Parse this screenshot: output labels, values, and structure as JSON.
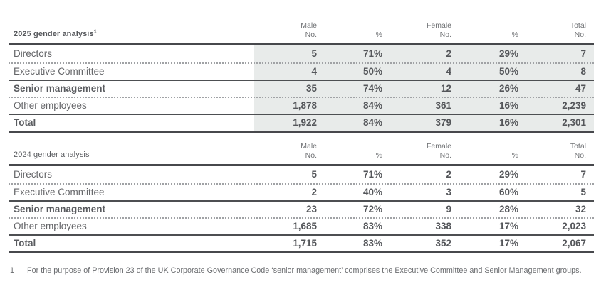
{
  "tables": [
    {
      "id": "table-2025",
      "title": "2025 gender analysis",
      "title_superscript": "1",
      "title_bold": true,
      "shaded": true,
      "columns": [
        {
          "line1": "Male",
          "line2": "No."
        },
        {
          "line1": "",
          "line2": "%"
        },
        {
          "line1": "Female",
          "line2": "No."
        },
        {
          "line1": "",
          "line2": "%"
        },
        {
          "line1": "Total",
          "line2": "No."
        }
      ],
      "rows": [
        {
          "label": "Directors",
          "bold": false,
          "separator": "none",
          "values": [
            "5",
            "71%",
            "2",
            "29%",
            "7"
          ]
        },
        {
          "label": "Executive Committee",
          "bold": false,
          "separator": "dotted",
          "values": [
            "4",
            "50%",
            "4",
            "50%",
            "8"
          ]
        },
        {
          "label": "Senior management",
          "bold": true,
          "separator": "solid",
          "values": [
            "35",
            "74%",
            "12",
            "26%",
            "47"
          ]
        },
        {
          "label": "Other employees",
          "bold": false,
          "separator": "dotted",
          "values": [
            "1,878",
            "84%",
            "361",
            "16%",
            "2,239"
          ]
        },
        {
          "label": "Total",
          "bold": true,
          "separator": "solid",
          "values": [
            "1,922",
            "84%",
            "379",
            "16%",
            "2,301"
          ]
        }
      ]
    },
    {
      "id": "table-2024",
      "title": "2024 gender analysis",
      "title_superscript": "",
      "title_bold": false,
      "shaded": false,
      "columns": [
        {
          "line1": "Male",
          "line2": "No."
        },
        {
          "line1": "",
          "line2": "%"
        },
        {
          "line1": "Female",
          "line2": "No."
        },
        {
          "line1": "",
          "line2": "%"
        },
        {
          "line1": "Total",
          "line2": "No."
        }
      ],
      "rows": [
        {
          "label": "Directors",
          "bold": false,
          "separator": "none",
          "values": [
            "5",
            "71%",
            "2",
            "29%",
            "7"
          ]
        },
        {
          "label": "Executive Committee",
          "bold": false,
          "separator": "dotted",
          "values": [
            "2",
            "40%",
            "3",
            "60%",
            "5"
          ]
        },
        {
          "label": "Senior management",
          "bold": true,
          "separator": "solid",
          "values": [
            "23",
            "72%",
            "9",
            "28%",
            "32"
          ]
        },
        {
          "label": "Other employees",
          "bold": false,
          "separator": "dotted",
          "values": [
            "1,685",
            "83%",
            "338",
            "17%",
            "2,023"
          ]
        },
        {
          "label": "Total",
          "bold": true,
          "separator": "solid",
          "values": [
            "1,715",
            "83%",
            "352",
            "17%",
            "2,067"
          ]
        }
      ]
    }
  ],
  "footnote": {
    "marker": "1",
    "text": "For the purpose of Provision 23 of the UK Corporate Governance Code ‘senior management’ comprises the Executive Committee and Senior Management groups."
  },
  "colors": {
    "shade": "#e8ebea",
    "rule_dark": "#47484c",
    "rule_mid": "#4d4f52",
    "dotted": "#a0a2a5",
    "text_number": "#54565a",
    "text_label": "#656669",
    "text_header": "#6e7073"
  }
}
